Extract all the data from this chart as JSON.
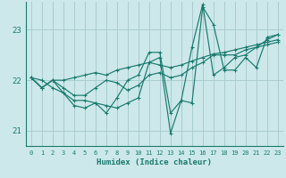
{
  "xlabel": "Humidex (Indice chaleur)",
  "background_color": "#cce8ea",
  "grid_color": "#aaccd0",
  "line_color": "#1a7a6e",
  "xlim": [
    -0.5,
    23.5
  ],
  "ylim": [
    20.7,
    23.55
  ],
  "yticks": [
    21,
    22,
    23
  ],
  "xticks": [
    0,
    1,
    2,
    3,
    4,
    5,
    6,
    7,
    8,
    9,
    10,
    11,
    12,
    13,
    14,
    15,
    16,
    17,
    18,
    19,
    20,
    21,
    22,
    23
  ],
  "series": [
    [
      22.05,
      21.85,
      22.0,
      21.75,
      21.5,
      21.45,
      21.55,
      21.35,
      21.65,
      22.0,
      22.1,
      22.55,
      22.55,
      21.35,
      21.6,
      21.55,
      23.45,
      23.1,
      22.2,
      22.2,
      22.45,
      22.25,
      22.85,
      22.9
    ],
    [
      22.05,
      21.85,
      22.0,
      22.0,
      22.05,
      22.1,
      22.15,
      22.1,
      22.2,
      22.25,
      22.3,
      22.35,
      22.3,
      22.25,
      22.3,
      22.38,
      22.45,
      22.52,
      22.55,
      22.6,
      22.65,
      22.7,
      22.75,
      22.8
    ],
    [
      22.05,
      22.0,
      21.85,
      21.75,
      21.6,
      21.6,
      21.55,
      21.5,
      21.45,
      21.55,
      21.65,
      22.35,
      22.45,
      20.95,
      21.6,
      22.65,
      23.5,
      22.1,
      22.25,
      22.45,
      22.5,
      22.65,
      22.8,
      22.9
    ],
    [
      22.05,
      21.85,
      22.0,
      21.85,
      21.7,
      21.7,
      21.85,
      22.0,
      21.95,
      21.8,
      21.9,
      22.1,
      22.15,
      22.05,
      22.1,
      22.25,
      22.35,
      22.5,
      22.5,
      22.5,
      22.6,
      22.65,
      22.7,
      22.75
    ]
  ]
}
